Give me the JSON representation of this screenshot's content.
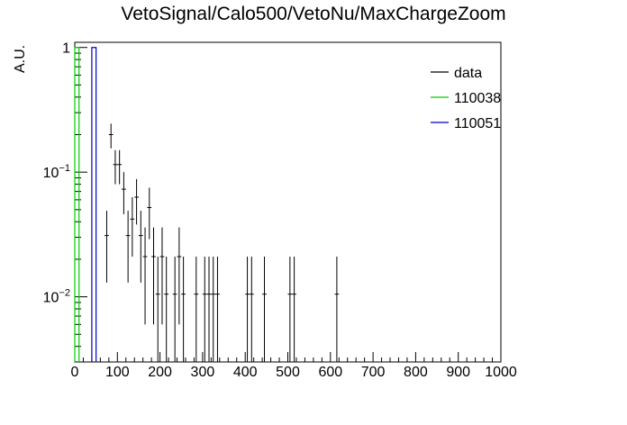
{
  "chart_data": {
    "type": "histogram",
    "title": "VetoSignal/Calo500/VetoNu/MaxChargeZoom",
    "ylabel": "A.U.",
    "xlabel": "",
    "xlim": [
      0,
      1000
    ],
    "ylim": [
      0.003,
      1.1
    ],
    "yscale": "log",
    "x_ticks": [
      0,
      100,
      200,
      300,
      400,
      500,
      600,
      700,
      800,
      900,
      1000
    ],
    "y_ticks": [
      {
        "value": 1,
        "label": "1",
        "base": "",
        "exp": ""
      },
      {
        "value": 0.1,
        "label": "",
        "base": "10",
        "exp": "−1"
      },
      {
        "value": 0.01,
        "label": "",
        "base": "10",
        "exp": "−2"
      }
    ],
    "legend": {
      "position": "top-right"
    },
    "series": [
      {
        "name": "data",
        "color": "#000000",
        "style": "points-with-errors",
        "bin_width": 10,
        "points": [
          {
            "x": 75,
            "y": 0.031,
            "err": 0.018
          },
          {
            "x": 85,
            "y": 0.2,
            "err": 0.045
          },
          {
            "x": 95,
            "y": 0.115,
            "err": 0.035
          },
          {
            "x": 105,
            "y": 0.115,
            "err": 0.035
          },
          {
            "x": 115,
            "y": 0.073,
            "err": 0.027
          },
          {
            "x": 125,
            "y": 0.031,
            "err": 0.018
          },
          {
            "x": 135,
            "y": 0.042,
            "err": 0.021
          },
          {
            "x": 145,
            "y": 0.063,
            "err": 0.025
          },
          {
            "x": 155,
            "y": 0.031,
            "err": 0.018
          },
          {
            "x": 165,
            "y": 0.021,
            "err": 0.015
          },
          {
            "x": 175,
            "y": 0.052,
            "err": 0.023
          },
          {
            "x": 185,
            "y": 0.021,
            "err": 0.015
          },
          {
            "x": 195,
            "y": 0.0105,
            "err": 0.0105
          },
          {
            "x": 205,
            "y": 0.021,
            "err": 0.015
          },
          {
            "x": 215,
            "y": 0.0105,
            "err": 0.0105
          },
          {
            "x": 235,
            "y": 0.0105,
            "err": 0.0105
          },
          {
            "x": 245,
            "y": 0.021,
            "err": 0.015
          },
          {
            "x": 255,
            "y": 0.0105,
            "err": 0.0105
          },
          {
            "x": 285,
            "y": 0.0105,
            "err": 0.0105
          },
          {
            "x": 305,
            "y": 0.0105,
            "err": 0.0105
          },
          {
            "x": 315,
            "y": 0.0105,
            "err": 0.0105
          },
          {
            "x": 325,
            "y": 0.0105,
            "err": 0.0105
          },
          {
            "x": 335,
            "y": 0.0105,
            "err": 0.0105
          },
          {
            "x": 405,
            "y": 0.0105,
            "err": 0.0105
          },
          {
            "x": 415,
            "y": 0.0105,
            "err": 0.0105
          },
          {
            "x": 445,
            "y": 0.0105,
            "err": 0.0105
          },
          {
            "x": 505,
            "y": 0.0105,
            "err": 0.0105
          },
          {
            "x": 515,
            "y": 0.0105,
            "err": 0.0105
          },
          {
            "x": 615,
            "y": 0.0105,
            "err": 0.0105
          }
        ]
      },
      {
        "name": "110038",
        "color": "#00cc00",
        "style": "histogram",
        "bins": [
          {
            "x0": 0,
            "x1": 10,
            "y": 1
          }
        ]
      },
      {
        "name": "110051",
        "color": "#0000cc",
        "style": "histogram",
        "bins": [
          {
            "x0": 40,
            "x1": 50,
            "y": 1
          }
        ]
      }
    ]
  }
}
